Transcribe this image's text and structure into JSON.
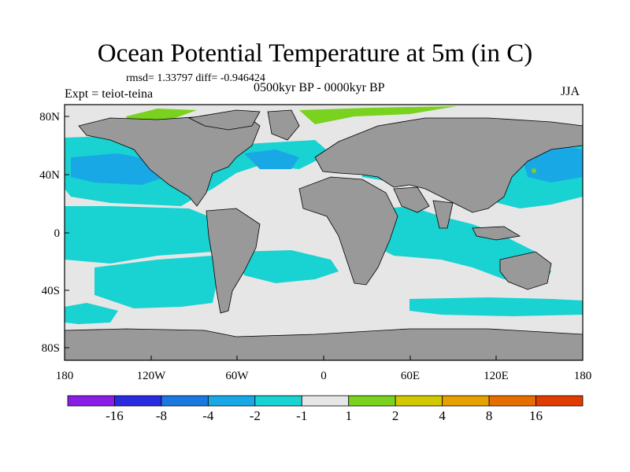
{
  "title": "Ocean Potential Temperature at 5m (in C)",
  "stats_line": "rmsd= 1.33797 diff= -0.946424",
  "experiment": "Expt = teiot-teina",
  "period": "0500kyr BP - 0000kyr BP",
  "season": "JJA",
  "axes": {
    "y_ticks": [
      "80N",
      "40N",
      "0",
      "40S",
      "80S"
    ],
    "x_ticks": [
      "180",
      "120W",
      "60W",
      "0",
      "60E",
      "120E",
      "180"
    ]
  },
  "colorbar": {
    "labels": [
      "-16",
      "-8",
      "-4",
      "-2",
      "-1",
      "1",
      "2",
      "4",
      "8",
      "16"
    ],
    "colors": [
      "#8a1ee6",
      "#2a2ae0",
      "#1a78e0",
      "#19a8e6",
      "#19d2d2",
      "#e6e6e6",
      "#78d21e",
      "#d2c800",
      "#e6a000",
      "#e66e00",
      "#e03c00"
    ]
  },
  "colors": {
    "land": "#999999",
    "ocean_neutral": "#e6e6e6",
    "anomaly_minus1_to_minus2": "#19d2d2",
    "anomaly_minus2_to_minus4": "#19a8e6",
    "anomaly_1_to_2": "#78d21e"
  }
}
